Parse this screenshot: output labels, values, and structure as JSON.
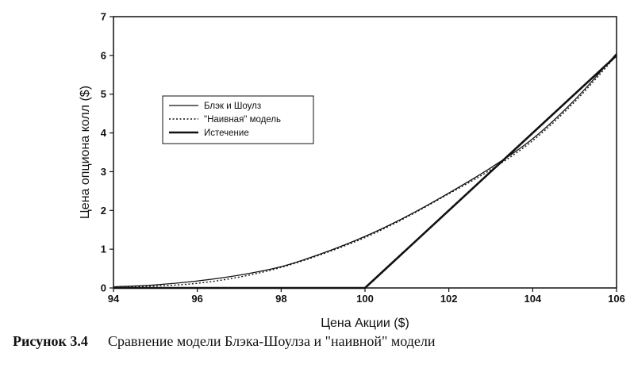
{
  "chart_data": {
    "type": "line",
    "xlabel": "Цена Акции ($)",
    "ylabel": "Цена опциона колл ($)",
    "xlim": [
      94,
      106
    ],
    "ylim": [
      0,
      7
    ],
    "x_ticks": [
      94,
      96,
      98,
      100,
      102,
      104,
      106
    ],
    "y_ticks": [
      0,
      1,
      2,
      3,
      4,
      5,
      6,
      7
    ],
    "grid": false,
    "legend_position": "upper-left",
    "series": [
      {
        "name": "Блэк и Шоулз",
        "style": "solid-thin",
        "x": [
          94,
          95,
          96,
          97,
          98,
          99,
          100,
          101,
          102,
          103,
          104,
          105,
          106
        ],
        "y": [
          0.03,
          0.08,
          0.18,
          0.33,
          0.55,
          0.9,
          1.33,
          1.85,
          2.45,
          3.1,
          3.85,
          4.85,
          6.05
        ]
      },
      {
        "name": "\"Наивная\" модель",
        "style": "dotted",
        "x": [
          94,
          95,
          96,
          97,
          98,
          99,
          100,
          101,
          102,
          103,
          104,
          105,
          106
        ],
        "y": [
          0.02,
          0.05,
          0.12,
          0.28,
          0.53,
          0.88,
          1.3,
          1.83,
          2.43,
          3.05,
          3.8,
          4.8,
          6.0
        ]
      },
      {
        "name": "Истечение",
        "style": "solid-thick",
        "x": [
          94,
          100,
          106
        ],
        "y": [
          0,
          0,
          6
        ]
      }
    ]
  },
  "caption": {
    "number": "Рисунок 3.4",
    "text": "Сравнение модели Блэка-Шоулза и \"наивной\" модели"
  }
}
